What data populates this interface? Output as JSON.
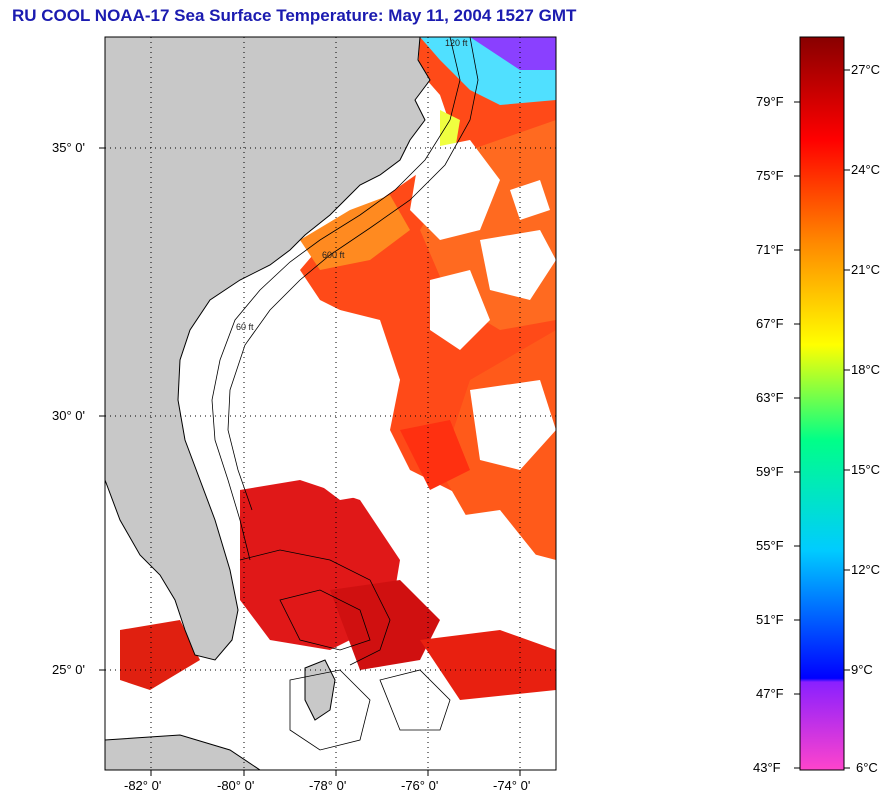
{
  "title": "RU COOL  NOAA-17  Sea Surface Temperature:  May 11, 2004 1527 GMT",
  "map": {
    "lon_range": [
      -83.0,
      -73.0
    ],
    "lat_range": [
      23.0,
      37.0
    ],
    "grid": "dotted",
    "lat_ticks": [
      {
        "value": 35,
        "label": "35° 0'"
      },
      {
        "value": 30,
        "label": "30° 0'"
      },
      {
        "value": 25,
        "label": "25° 0'"
      }
    ],
    "lon_ticks": [
      {
        "value": -82,
        "label": "-82° 0'"
      },
      {
        "value": -80,
        "label": "-80° 0'"
      },
      {
        "value": -78,
        "label": "-78° 0'"
      },
      {
        "value": -76,
        "label": "-76° 0'"
      },
      {
        "value": -74,
        "label": "-74° 0'"
      }
    ],
    "colors": {
      "land": "#c8c8c8",
      "cloud": "#ffffff",
      "warm_water": "#ff3a10",
      "hot_water": "#d01010",
      "shelf_water": "#ff8a18"
    },
    "contour_labels": [
      "120 ft",
      "600 ft",
      "60 ft"
    ]
  },
  "colorbar": {
    "gradient": [
      "#ff44cc",
      "#8a20ff",
      "#0000ff",
      "#00ccff",
      "#00ff88",
      "#ffff00",
      "#ff8800",
      "#ff0000",
      "#880000"
    ],
    "f_labels": [
      "79°F",
      "75°F",
      "71°F",
      "67°F",
      "63°F",
      "59°F",
      "55°F",
      "51°F",
      "47°F",
      "43°F"
    ],
    "c_labels": [
      "27°C",
      "24°C",
      "21°C",
      "18°C",
      "15°C",
      "12°C",
      "9°C",
      "6°C"
    ]
  }
}
